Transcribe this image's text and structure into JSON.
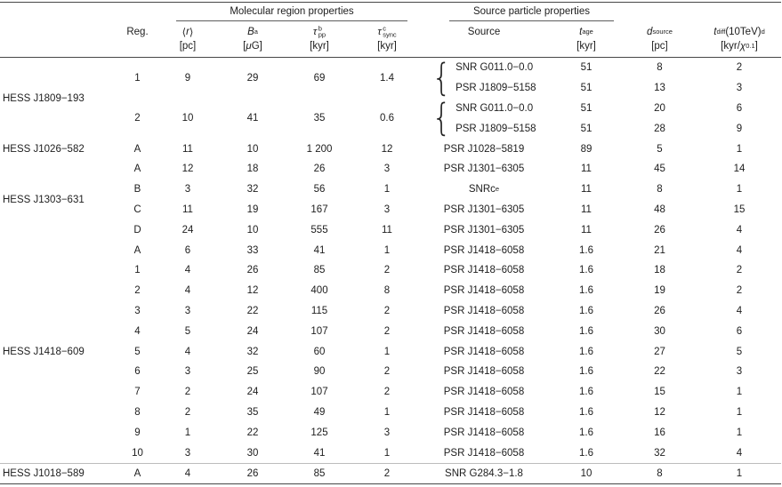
{
  "colors": {
    "background": "#ffffff",
    "text": "#1d1d1d",
    "rule_dark": "#474747",
    "rule_light": "#bdbdbd"
  },
  "table": {
    "group_headers": {
      "molecular": "Molecular region properties",
      "source": "Source particle properties"
    },
    "columns": [
      {
        "id": "name",
        "main": "",
        "unit": ""
      },
      {
        "id": "reg",
        "main": "Reg.",
        "unit": ""
      },
      {
        "id": "r",
        "main": "⟨*r*⟩",
        "unit": "[pc]"
      },
      {
        "id": "B",
        "main": "*B*^{a}",
        "unit": "[*μ*G]"
      },
      {
        "id": "tau_pp",
        "main": "*τ*_{pp}^{b}",
        "unit": "[kyr]"
      },
      {
        "id": "tau_sync",
        "main": "*τ*_{sync}^{c}",
        "unit": "[kyr]"
      },
      {
        "id": "source",
        "main": "Source",
        "unit": ""
      },
      {
        "id": "t_age",
        "main": "*t*_{age}",
        "unit": "[kyr]"
      },
      {
        "id": "d_source",
        "main": "*d*_{source}",
        "unit": "[pc]"
      },
      {
        "id": "t_diff",
        "main": "*t*_{diff} (10TeV)^{d}",
        "unit": "[kyr/*χ*_{0.1}]"
      }
    ],
    "groups": [
      {
        "name": "HESS J1809−193",
        "regions": [
          {
            "reg": "1",
            "r": "9",
            "B": "29",
            "tau_pp": "69",
            "tau_sync": "1.4",
            "brace": true,
            "sources": [
              {
                "source": "SNR G011.0−0.0",
                "t_age": "51",
                "d_source": "8",
                "t_diff": "2"
              },
              {
                "source": "PSR J1809−5158",
                "t_age": "51",
                "d_source": "13",
                "t_diff": "3"
              }
            ]
          },
          {
            "reg": "2",
            "r": "10",
            "B": "41",
            "tau_pp": "35",
            "tau_sync": "0.6",
            "brace": true,
            "sources": [
              {
                "source": "SNR G011.0−0.0",
                "t_age": "51",
                "d_source": "20",
                "t_diff": "6"
              },
              {
                "source": "PSR J1809−5158",
                "t_age": "51",
                "d_source": "28",
                "t_diff": "9"
              }
            ]
          }
        ]
      },
      {
        "name": "HESS J1026−582",
        "regions": [
          {
            "reg": "A",
            "r": "11",
            "B": "10",
            "tau_pp": "1 200",
            "tau_sync": "12",
            "sources": [
              {
                "source": "PSR J1028−5819",
                "t_age": "89",
                "d_source": "5",
                "t_diff": "1"
              }
            ]
          }
        ]
      },
      {
        "name": "HESS J1303−631",
        "regions": [
          {
            "reg": "A",
            "r": "12",
            "B": "18",
            "tau_pp": "26",
            "tau_sync": "3",
            "sources": [
              {
                "source": "PSR J1301−6305",
                "t_age": "11",
                "d_source": "45",
                "t_diff": "14"
              }
            ]
          },
          {
            "reg": "B",
            "r": "3",
            "B": "32",
            "tau_pp": "56",
            "tau_sync": "1",
            "sources": [
              {
                "source": "SNRc^{e}",
                "t_age": "11",
                "d_source": "8",
                "t_diff": "1"
              }
            ]
          },
          {
            "reg": "C",
            "r": "11",
            "B": "19",
            "tau_pp": "167",
            "tau_sync": "3",
            "sources": [
              {
                "source": "PSR J1301−6305",
                "t_age": "11",
                "d_source": "48",
                "t_diff": "15"
              }
            ]
          },
          {
            "reg": "D",
            "r": "24",
            "B": "10",
            "tau_pp": "555",
            "tau_sync": "11",
            "sources": [
              {
                "source": "PSR J1301−6305",
                "t_age": "11",
                "d_source": "26",
                "t_diff": "4"
              }
            ]
          }
        ]
      },
      {
        "name": "HESS J1418−609",
        "regions": [
          {
            "reg": "A",
            "r": "6",
            "B": "33",
            "tau_pp": "41",
            "tau_sync": "1",
            "sources": [
              {
                "source": "PSR J1418−6058",
                "t_age": "1.6",
                "d_source": "21",
                "t_diff": "4"
              }
            ]
          },
          {
            "reg": "1",
            "r": "4",
            "B": "26",
            "tau_pp": "85",
            "tau_sync": "2",
            "sources": [
              {
                "source": "PSR J1418−6058",
                "t_age": "1.6",
                "d_source": "18",
                "t_diff": "2"
              }
            ]
          },
          {
            "reg": "2",
            "r": "4",
            "B": "12",
            "tau_pp": "400",
            "tau_sync": "8",
            "sources": [
              {
                "source": "PSR J1418−6058",
                "t_age": "1.6",
                "d_source": "19",
                "t_diff": "2"
              }
            ]
          },
          {
            "reg": "3",
            "r": "3",
            "B": "22",
            "tau_pp": "115",
            "tau_sync": "2",
            "sources": [
              {
                "source": "PSR J1418−6058",
                "t_age": "1.6",
                "d_source": "26",
                "t_diff": "4"
              }
            ]
          },
          {
            "reg": "4",
            "r": "5",
            "B": "24",
            "tau_pp": "107",
            "tau_sync": "2",
            "sources": [
              {
                "source": "PSR J1418−6058",
                "t_age": "1.6",
                "d_source": "30",
                "t_diff": "6"
              }
            ]
          },
          {
            "reg": "5",
            "r": "4",
            "B": "32",
            "tau_pp": "60",
            "tau_sync": "1",
            "sources": [
              {
                "source": "PSR J1418−6058",
                "t_age": "1.6",
                "d_source": "27",
                "t_diff": "5"
              }
            ]
          },
          {
            "reg": "6",
            "r": "3",
            "B": "25",
            "tau_pp": "90",
            "tau_sync": "2",
            "sources": [
              {
                "source": "PSR J1418−6058",
                "t_age": "1.6",
                "d_source": "22",
                "t_diff": "3"
              }
            ]
          },
          {
            "reg": "7",
            "r": "2",
            "B": "24",
            "tau_pp": "107",
            "tau_sync": "2",
            "sources": [
              {
                "source": "PSR J1418−6058",
                "t_age": "1.6",
                "d_source": "15",
                "t_diff": "1"
              }
            ]
          },
          {
            "reg": "8",
            "r": "2",
            "B": "35",
            "tau_pp": "49",
            "tau_sync": "1",
            "sources": [
              {
                "source": "PSR J1418−6058",
                "t_age": "1.6",
                "d_source": "12",
                "t_diff": "1"
              }
            ]
          },
          {
            "reg": "9",
            "r": "1",
            "B": "22",
            "tau_pp": "125",
            "tau_sync": "3",
            "sources": [
              {
                "source": "PSR J1418−6058",
                "t_age": "1.6",
                "d_source": "16",
                "t_diff": "1"
              }
            ]
          },
          {
            "reg": "10",
            "r": "3",
            "B": "30",
            "tau_pp": "41",
            "tau_sync": "1",
            "sources": [
              {
                "source": "PSR J1418−6058",
                "t_age": "1.6",
                "d_source": "32",
                "t_diff": "4"
              }
            ]
          }
        ]
      },
      {
        "name": "HESS J1018−589",
        "separator_above": true,
        "regions": [
          {
            "reg": "A",
            "r": "4",
            "B": "26",
            "tau_pp": "85",
            "tau_sync": "2",
            "sources": [
              {
                "source": "SNR G284.3−1.8",
                "t_age": "10",
                "d_source": "8",
                "t_diff": "1"
              }
            ]
          }
        ]
      }
    ]
  }
}
